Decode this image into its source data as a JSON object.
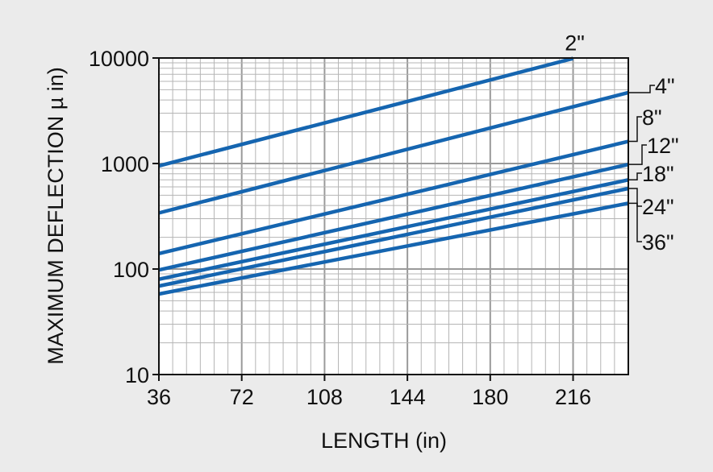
{
  "chart_data": {
    "type": "line",
    "title": "",
    "xlabel": "LENGTH (in)",
    "ylabel": "MAXIMUM DEFLECTION µ in)",
    "x_scale": "linear",
    "y_scale": "log",
    "xlim": [
      36,
      240
    ],
    "ylim": [
      10,
      10000
    ],
    "x_ticks": [
      36,
      72,
      108,
      144,
      180,
      216
    ],
    "x_tick_labels": [
      "36",
      "72",
      "108",
      "144",
      "180",
      "216"
    ],
    "y_ticks": [
      10,
      100,
      1000,
      10000
    ],
    "y_tick_labels": [
      "10",
      "100",
      "1000",
      "10000"
    ],
    "grid": true,
    "series": [
      {
        "name": "2\"",
        "x": [
          36,
          216
        ],
        "y": [
          950,
          9900
        ]
      },
      {
        "name": "4\"",
        "x": [
          36,
          240
        ],
        "y": [
          340,
          4700
        ]
      },
      {
        "name": "8\"",
        "x": [
          36,
          240
        ],
        "y": [
          140,
          1620
        ]
      },
      {
        "name": "12\"",
        "x": [
          36,
          240
        ],
        "y": [
          98,
          980
        ]
      },
      {
        "name": "18\"",
        "x": [
          36,
          240
        ],
        "y": [
          80,
          700
        ]
      },
      {
        "name": "24\"",
        "x": [
          36,
          240
        ],
        "y": [
          69,
          580
        ]
      },
      {
        "name": "36\"",
        "x": [
          36,
          240
        ],
        "y": [
          58,
          420
        ]
      }
    ],
    "colors": {
      "line": "#1565b0",
      "background": "#ebebeb",
      "plot_background": "#ffffff",
      "grid": "#b5b5b5"
    }
  }
}
